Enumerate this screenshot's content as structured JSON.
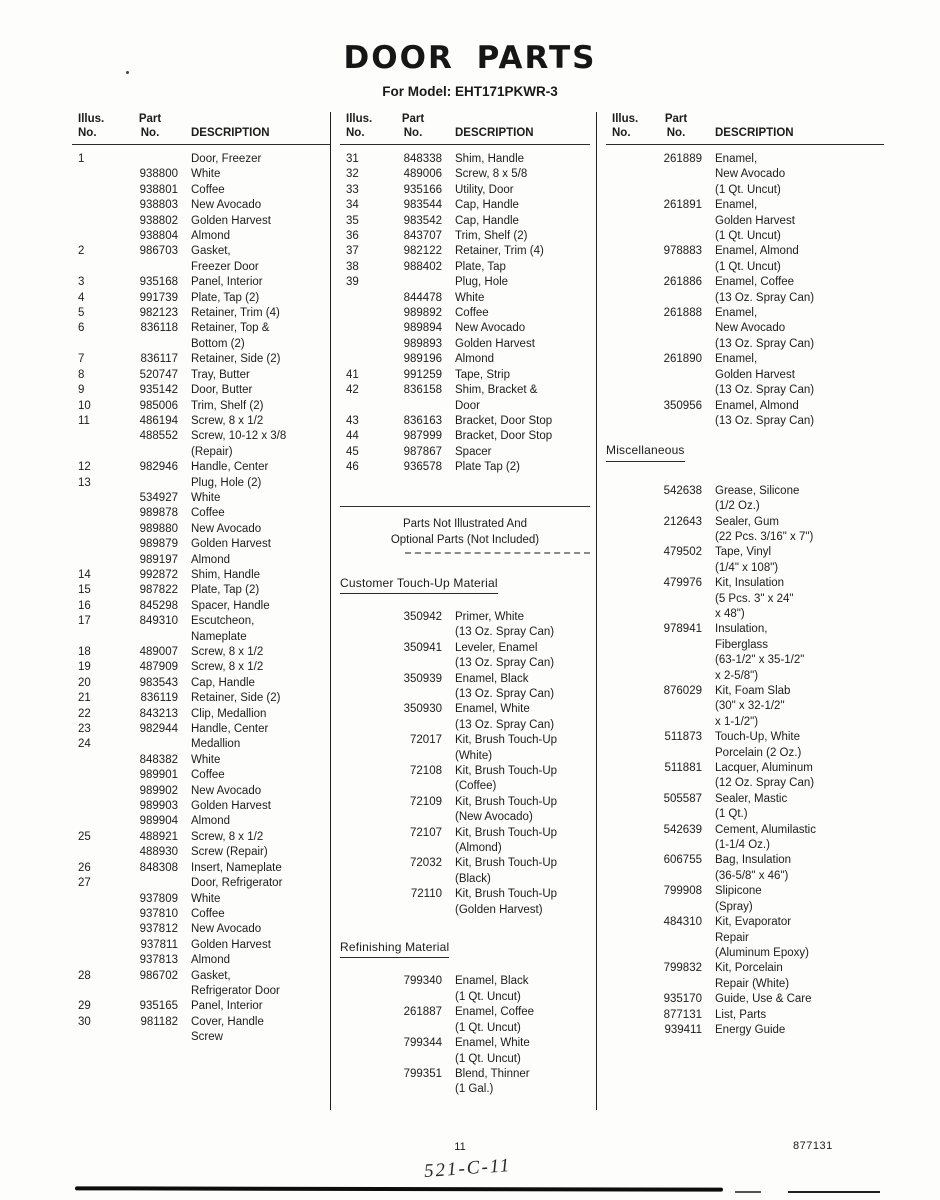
{
  "page": {
    "title": "DOOR PARTS",
    "subtitle": "For Model: EHT171PKWR-3",
    "page_number": "11",
    "doc_number": "877131",
    "handwritten_note": "521-C-11"
  },
  "table_headers": {
    "illus": "Illus.",
    "part": "Part",
    "no": "No.",
    "description": "DESCRIPTION"
  },
  "col1": {
    "rows": [
      {
        "i": "1",
        "p": "",
        "d": "Door, Freezer"
      },
      {
        "i": "",
        "p": "938800",
        "d": "White"
      },
      {
        "i": "",
        "p": "938801",
        "d": "Coffee"
      },
      {
        "i": "",
        "p": "938803",
        "d": "New Avocado"
      },
      {
        "i": "",
        "p": "938802",
        "d": "Golden Harvest"
      },
      {
        "i": "",
        "p": "938804",
        "d": "Almond"
      },
      {
        "i": "2",
        "p": "986703",
        "d": "Gasket,\nFreezer Door"
      },
      {
        "i": "3",
        "p": "935168",
        "d": "Panel, Interior"
      },
      {
        "i": "4",
        "p": "991739",
        "d": "Plate, Tap (2)"
      },
      {
        "i": "5",
        "p": "982123",
        "d": "Retainer, Trim (4)"
      },
      {
        "i": "6",
        "p": "836118",
        "d": "Retainer, Top &\nBottom (2)"
      },
      {
        "i": "7",
        "p": "836117",
        "d": "Retainer, Side (2)"
      },
      {
        "i": "8",
        "p": "520747",
        "d": "Tray, Butter"
      },
      {
        "i": "9",
        "p": "935142",
        "d": "Door, Butter"
      },
      {
        "i": "10",
        "p": "985006",
        "d": "Trim, Shelf (2)"
      },
      {
        "i": "11",
        "p": "486194",
        "d": "Screw, 8 x 1/2"
      },
      {
        "i": "",
        "p": "488552",
        "d": "Screw, 10-12 x 3/8\n(Repair)"
      },
      {
        "i": "12",
        "p": "982946",
        "d": "Handle, Center"
      },
      {
        "i": "13",
        "p": "",
        "d": "Plug, Hole (2)"
      },
      {
        "i": "",
        "p": "534927",
        "d": "White"
      },
      {
        "i": "",
        "p": "989878",
        "d": "Coffee"
      },
      {
        "i": "",
        "p": "989880",
        "d": "New Avocado"
      },
      {
        "i": "",
        "p": "989879",
        "d": "Golden Harvest"
      },
      {
        "i": "",
        "p": "989197",
        "d": "Almond"
      },
      {
        "i": "14",
        "p": "992872",
        "d": "Shim, Handle"
      },
      {
        "i": "15",
        "p": "987822",
        "d": "Plate, Tap (2)"
      },
      {
        "i": "16",
        "p": "845298",
        "d": "Spacer, Handle"
      },
      {
        "i": "17",
        "p": "849310",
        "d": "Escutcheon,\nNameplate"
      },
      {
        "i": "18",
        "p": "489007",
        "d": "Screw, 8 x 1/2"
      },
      {
        "i": "19",
        "p": "487909",
        "d": "Screw, 8 x 1/2"
      },
      {
        "i": "20",
        "p": "983543",
        "d": "Cap, Handle"
      },
      {
        "i": "21",
        "p": "836119",
        "d": "Retainer, Side (2)"
      },
      {
        "i": "22",
        "p": "843213",
        "d": "Clip, Medallion"
      },
      {
        "i": "23",
        "p": "982944",
        "d": "Handle, Center"
      },
      {
        "i": "24",
        "p": "",
        "d": "Medallion"
      },
      {
        "i": "",
        "p": "848382",
        "d": "White"
      },
      {
        "i": "",
        "p": "989901",
        "d": "Coffee"
      },
      {
        "i": "",
        "p": "989902",
        "d": "New Avocado"
      },
      {
        "i": "",
        "p": "989903",
        "d": "Golden Harvest"
      },
      {
        "i": "",
        "p": "989904",
        "d": "Almond"
      },
      {
        "i": "25",
        "p": "488921",
        "d": "Screw, 8 x 1/2"
      },
      {
        "i": "",
        "p": "488930",
        "d": "Screw (Repair)"
      },
      {
        "i": "26",
        "p": "848308",
        "d": "Insert, Nameplate"
      },
      {
        "i": "27",
        "p": "",
        "d": "Door, Refrigerator"
      },
      {
        "i": "",
        "p": "937809",
        "d": "White"
      },
      {
        "i": "",
        "p": "937810",
        "d": "Coffee"
      },
      {
        "i": "",
        "p": "937812",
        "d": "New Avocado"
      },
      {
        "i": "",
        "p": "937811",
        "d": "Golden Harvest"
      },
      {
        "i": "",
        "p": "937813",
        "d": "Almond"
      },
      {
        "i": "28",
        "p": "986702",
        "d": "Gasket,\nRefrigerator Door"
      },
      {
        "i": "29",
        "p": "935165",
        "d": "Panel, Interior"
      },
      {
        "i": "30",
        "p": "981182",
        "d": "Cover, Handle\nScrew"
      }
    ]
  },
  "col2": {
    "rows": [
      {
        "i": "31",
        "p": "848338",
        "d": "Shim, Handle"
      },
      {
        "i": "32",
        "p": "489006",
        "d": "Screw, 8 x 5/8"
      },
      {
        "i": "33",
        "p": "935166",
        "d": "Utility, Door"
      },
      {
        "i": "34",
        "p": "983544",
        "d": "Cap, Handle"
      },
      {
        "i": "35",
        "p": "983542",
        "d": "Cap, Handle"
      },
      {
        "i": "36",
        "p": "843707",
        "d": "Trim, Shelf (2)"
      },
      {
        "i": "37",
        "p": "982122",
        "d": "Retainer, Trim (4)"
      },
      {
        "i": "38",
        "p": "988402",
        "d": "Plate, Tap"
      },
      {
        "i": "39",
        "p": "",
        "d": "Plug, Hole"
      },
      {
        "i": "",
        "p": "844478",
        "d": "White"
      },
      {
        "i": "",
        "p": "989892",
        "d": "Coffee"
      },
      {
        "i": "",
        "p": "989894",
        "d": "New Avocado"
      },
      {
        "i": "",
        "p": "989893",
        "d": "Golden Harvest"
      },
      {
        "i": "",
        "p": "989196",
        "d": "Almond"
      },
      {
        "i": "41",
        "p": "991259",
        "d": "Tape, Strip"
      },
      {
        "i": "42",
        "p": "836158",
        "d": "Shim, Bracket &\nDoor"
      },
      {
        "i": "43",
        "p": "836163",
        "d": "Bracket, Door Stop"
      },
      {
        "i": "44",
        "p": "987999",
        "d": "Bracket, Door Stop"
      },
      {
        "i": "45",
        "p": "987867",
        "d": "Spacer"
      },
      {
        "i": "46",
        "p": "936578",
        "d": "Plate Tap (2)"
      }
    ],
    "not_illustrated": "Parts Not Illustrated And\nOptional Parts (Not Included)",
    "sections": [
      {
        "heading": "Customer Touch-Up Material",
        "rows": [
          {
            "i": "",
            "p": "350942",
            "d": "Primer, White\n(13 Oz. Spray Can)"
          },
          {
            "i": "",
            "p": "350941",
            "d": "Leveler, Enamel\n(13 Oz. Spray Can)"
          },
          {
            "i": "",
            "p": "350939",
            "d": "Enamel, Black\n(13 Oz. Spray Can)"
          },
          {
            "i": "",
            "p": "350930",
            "d": "Enamel, White\n(13 Oz. Spray Can)"
          },
          {
            "i": "",
            "p": "72017",
            "d": "Kit, Brush Touch-Up\n(White)"
          },
          {
            "i": "",
            "p": "72108",
            "d": "Kit, Brush Touch-Up\n(Coffee)"
          },
          {
            "i": "",
            "p": "72109",
            "d": "Kit, Brush Touch-Up\n(New Avocado)"
          },
          {
            "i": "",
            "p": "72107",
            "d": "Kit, Brush Touch-Up\n(Almond)"
          },
          {
            "i": "",
            "p": "72032",
            "d": "Kit, Brush Touch-Up\n(Black)"
          },
          {
            "i": "",
            "p": "72110",
            "d": "Kit, Brush Touch-Up\n(Golden Harvest)"
          }
        ]
      },
      {
        "heading": "Refinishing Material",
        "rows": [
          {
            "i": "",
            "p": "799340",
            "d": "Enamel, Black\n(1 Qt. Uncut)"
          },
          {
            "i": "",
            "p": "261887",
            "d": "Enamel, Coffee\n(1 Qt. Uncut)"
          },
          {
            "i": "",
            "p": "799344",
            "d": "Enamel, White\n(1 Qt. Uncut)"
          },
          {
            "i": "",
            "p": "799351",
            "d": "Blend, Thinner\n(1 Gal.)"
          }
        ]
      }
    ]
  },
  "col3": {
    "rows": [
      {
        "i": "",
        "p": "261889",
        "d": "Enamel,\nNew Avocado\n(1 Qt. Uncut)"
      },
      {
        "i": "",
        "p": "261891",
        "d": "Enamel,\nGolden Harvest\n(1 Qt. Uncut)"
      },
      {
        "i": "",
        "p": "978883",
        "d": "Enamel, Almond\n(1 Qt. Uncut)"
      },
      {
        "i": "",
        "p": "261886",
        "d": "Enamel, Coffee\n(13 Oz. Spray Can)"
      },
      {
        "i": "",
        "p": "261888",
        "d": "Enamel,\nNew Avocado\n(13 Oz. Spray Can)"
      },
      {
        "i": "",
        "p": "261890",
        "d": "Enamel,\nGolden Harvest\n(13 Oz. Spray Can)"
      },
      {
        "i": "",
        "p": "350956",
        "d": "Enamel, Almond\n(13 Oz. Spray Can)"
      }
    ],
    "misc_heading": "Miscellaneous",
    "misc_rows": [
      {
        "i": "",
        "p": "542638",
        "d": "Grease, Silicone\n(1/2 Oz.)"
      },
      {
        "i": "",
        "p": "212643",
        "d": "Sealer, Gum\n(22 Pcs. 3/16\" x 7\")"
      },
      {
        "i": "",
        "p": "479502",
        "d": "Tape, Vinyl\n(1/4\" x 108\")"
      },
      {
        "i": "",
        "p": "479976",
        "d": "Kit, Insulation\n(5 Pcs. 3\" x 24\"\nx 48\")"
      },
      {
        "i": "",
        "p": "978941",
        "d": "Insulation,\nFiberglass\n(63-1/2\" x 35-1/2\"\nx 2-5/8\")"
      },
      {
        "i": "",
        "p": "876029",
        "d": "Kit, Foam Slab\n(30\" x 32-1/2\"\nx 1-1/2\")"
      },
      {
        "i": "",
        "p": "511873",
        "d": "Touch-Up, White\nPorcelain (2 Oz.)"
      },
      {
        "i": "",
        "p": "511881",
        "d": "Lacquer, Aluminum\n(12 Oz. Spray Can)"
      },
      {
        "i": "",
        "p": "505587",
        "d": "Sealer, Mastic\n(1 Qt.)"
      },
      {
        "i": "",
        "p": "542639",
        "d": "Cement, Alumilastic\n(1-1/4 Oz.)"
      },
      {
        "i": "",
        "p": "606755",
        "d": "Bag, Insulation\n(36-5/8\" x 46\")"
      },
      {
        "i": "",
        "p": "799908",
        "d": "Slipicone\n(Spray)"
      },
      {
        "i": "",
        "p": "484310",
        "d": "Kit, Evaporator\nRepair\n(Aluminum Epoxy)"
      },
      {
        "i": "",
        "p": "799832",
        "d": "Kit, Porcelain\nRepair (White)"
      },
      {
        "i": "",
        "p": "935170",
        "d": "Guide, Use & Care"
      },
      {
        "i": "",
        "p": "877131",
        "d": "List, Parts"
      },
      {
        "i": "",
        "p": "939411",
        "d": "Energy Guide"
      }
    ]
  }
}
